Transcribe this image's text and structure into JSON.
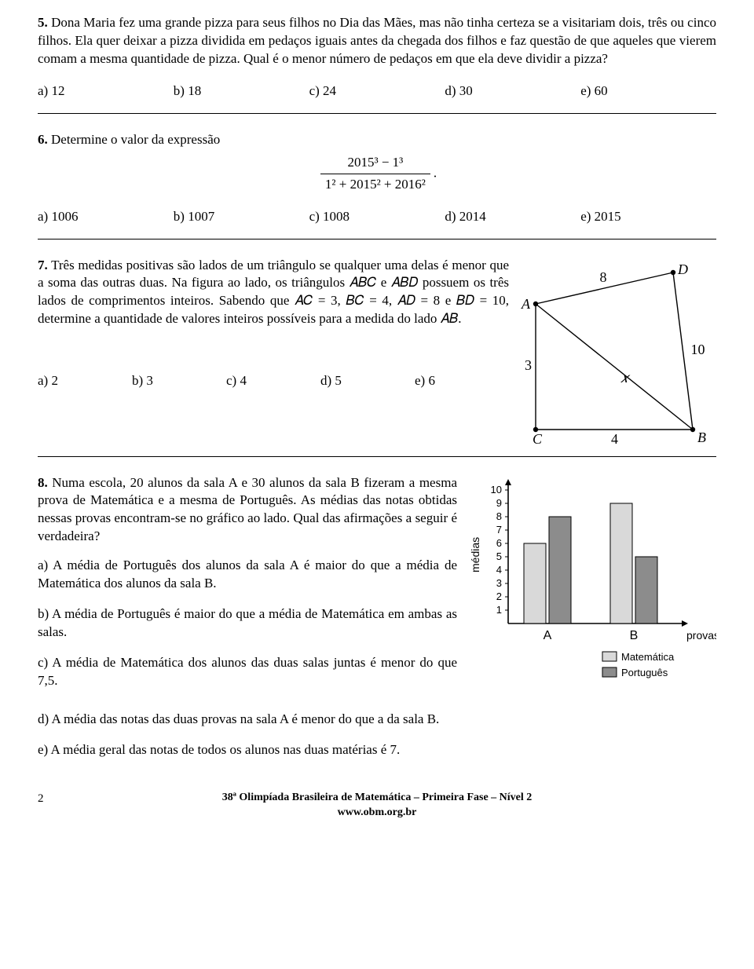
{
  "q5": {
    "num": "5.",
    "text": " Dona Maria fez uma grande pizza para seus filhos no Dia das Mães, mas não tinha certeza se a visitariam dois, três ou cinco filhos. Ela quer deixar a pizza dividida em pedaços iguais antes da chegada dos filhos e faz questão de que aqueles que vierem comam a mesma quantidade de pizza. Qual é o menor número de pedaços em que ela deve dividir a pizza?",
    "opts": [
      "a) 12",
      "b) 18",
      "c) 24",
      "d) 30",
      "e) 60"
    ]
  },
  "q6": {
    "num": "6.",
    "text": " Determine o valor da expressão",
    "frac_num": "2015³ − 1³",
    "frac_den": "1² + 2015² + 2016²",
    "dot": ".",
    "opts": [
      "a) 1006",
      "b) 1007",
      "c) 1008",
      "d) 2014",
      "e) 2015"
    ]
  },
  "q7": {
    "num": "7.",
    "text": " Três medidas positivas são lados de um triângulo se qualquer uma delas é menor que a soma das outras duas. Na figura ao lado, os triângulos 𝐴𝐵𝐶 e 𝐴𝐵𝐷 possuem os três lados de comprimentos inteiros. Sabendo que 𝐴𝐶 = 3, 𝐵𝐶 = 4, 𝐴𝐷 = 8 e 𝐵𝐷 = 10, determine a quantidade de valores inteiros possíveis para a medida do lado 𝐴𝐵.",
    "opts": [
      "a) 2",
      "b) 3",
      "c) 4",
      "d) 5",
      "e) 6"
    ],
    "figure": {
      "pts": {
        "A": [
          20,
          60
        ],
        "B": [
          220,
          220
        ],
        "C": [
          20,
          220
        ],
        "D": [
          195,
          20
        ]
      },
      "labels": {
        "A": "A",
        "B": "B",
        "C": "C",
        "D": "D",
        "AD": "8",
        "BD": "10",
        "AC": "3",
        "CB": "4",
        "x": "𝑥"
      },
      "colors": {
        "line": "#000000",
        "text": "#000000",
        "dot": "#000000"
      },
      "font_it": "italic 18px 'Times New Roman',serif",
      "font_lab": "18px 'Times New Roman',serif"
    }
  },
  "q8": {
    "num": "8.",
    "intro": " Numa escola, 20 alunos da sala A e 30 alunos da sala B fizeram a mesma prova de Matemática e a mesma de Português. As médias das notas obtidas nessas provas encontram-se no gráfico ao lado. Qual das afirmações a seguir é verdadeira?",
    "a": "a) A média de Português dos alunos da sala A é maior do que a média de Matemática dos alunos da sala B.",
    "b": "b) A média de Português é maior do que a média de Matemática em ambas as salas.",
    "c": "c) A média de Matemática dos alunos das duas salas juntas é menor do que 7,5.",
    "d": "d) A média das notas das duas provas na sala A é menor do que a da sala B.",
    "e": "e) A média geral das notas de todos os alunos nas duas matérias é 7.",
    "chart": {
      "type": "bar",
      "y_label": "médias",
      "x_label": "provas",
      "categories": [
        "A",
        "B"
      ],
      "series": [
        {
          "name": "Matemática",
          "color": "#d9d9d9",
          "values": [
            6,
            9
          ]
        },
        {
          "name": "Português",
          "color": "#8c8c8c",
          "values": [
            8,
            5
          ]
        }
      ],
      "ylim": [
        0,
        10
      ],
      "yticks": [
        1,
        2,
        3,
        4,
        5,
        6,
        7,
        8,
        9,
        10
      ],
      "axis_color": "#000000",
      "bg": "#ffffff",
      "bar_border": "#000000",
      "legend_font": "13px Arial,Helvetica,sans-serif",
      "axis_font": "14px Arial,Helvetica,sans-serif",
      "tick_font": "13px Arial,Helvetica,sans-serif"
    }
  },
  "footer": {
    "page": "2",
    "line1": "38ª Olimpíada Brasileira de Matemática – Primeira Fase – Nível 2",
    "line2": "www.obm.org.br"
  }
}
